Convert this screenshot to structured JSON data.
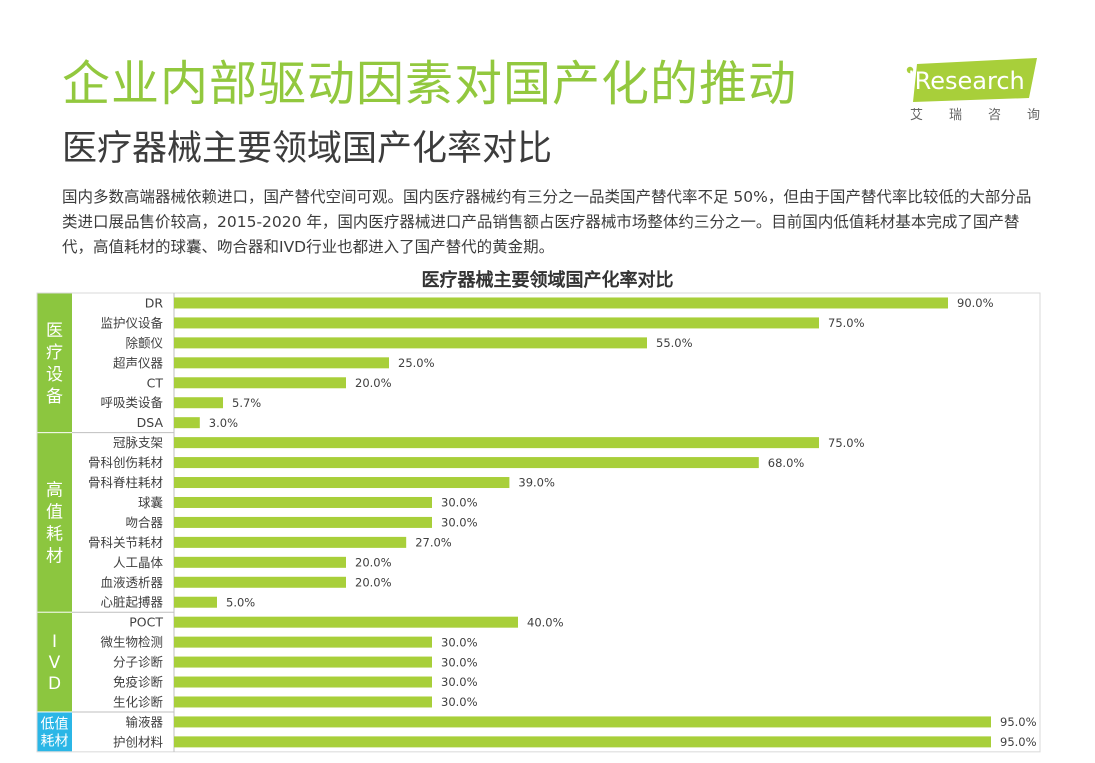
{
  "header": {
    "title": "企业内部驱动因素对国产化的推动",
    "subtitle": "医疗器械主要领域国产化率对比",
    "logo_text": "iResearch",
    "logo_sub": [
      "艾",
      "瑞",
      "咨",
      "询"
    ]
  },
  "intro": "国内多数高端器械依赖进口，国产替代空间可观。国内医疗器械约有三分之一品类国产替代率不足 50%，但由于国产替代率比较低的大部分品类进口展品售价较高，2015-2020 年，国内医疗器械进口产品销售额占医疗器械市场整体约三分之一。目前国内低值耗材基本完成了国产替代，高值耗材的球囊、吻合器和IVD行业也都进入了国产替代的黄金期。",
  "colors": {
    "bar": "#a8cf3a",
    "segments": [
      "#8cc63f",
      "#8cc63f",
      "#8cc63f",
      "#2bb6e6"
    ]
  },
  "chart_data": {
    "type": "bar",
    "orientation": "horizontal",
    "title": "医疗器械主要领域国产化率对比",
    "value_format": "percent_1dp",
    "xlim": [
      0,
      100
    ],
    "grid": false,
    "categories": [
      "DR",
      "监护仪设备",
      "除颤仪",
      "超声仪器",
      "CT",
      "呼吸类设备",
      "DSA",
      "冠脉支架",
      "骨科创伤耗材",
      "骨科脊柱耗材",
      "球囊",
      "吻合器",
      "骨科关节耗材",
      "人工晶体",
      "血液透析器",
      "心脏起搏器",
      "POCT",
      "微生物检测",
      "分子诊断",
      "免疫诊断",
      "生化诊断",
      "输液器",
      "护创材料"
    ],
    "values": [
      90.0,
      75.0,
      55.0,
      25.0,
      20.0,
      5.7,
      3.0,
      75.0,
      68.0,
      39.0,
      30.0,
      30.0,
      27.0,
      20.0,
      20.0,
      5.0,
      40.0,
      30.0,
      30.0,
      30.0,
      30.0,
      95.0,
      95.0
    ],
    "data_labels": [
      "90.0%",
      "75.0%",
      "55.0%",
      "25.0%",
      "20.0%",
      "5.7%",
      "3.0%",
      "75.0%",
      "68.0%",
      "39.0%",
      "30.0%",
      "30.0%",
      "27.0%",
      "20.0%",
      "20.0%",
      "5.0%",
      "40.0%",
      "30.0%",
      "30.0%",
      "30.0%",
      "30.0%",
      "95.0%",
      "95.0%"
    ],
    "groups": [
      {
        "label": [
          "医",
          "疗",
          "设",
          "备"
        ],
        "count": 7
      },
      {
        "label": [
          "高",
          "值",
          "耗",
          "材"
        ],
        "count": 9
      },
      {
        "label": [
          "I",
          "V",
          "D"
        ],
        "count": 5
      },
      {
        "label": [
          "低值",
          "耗材"
        ],
        "count": 2
      }
    ]
  }
}
